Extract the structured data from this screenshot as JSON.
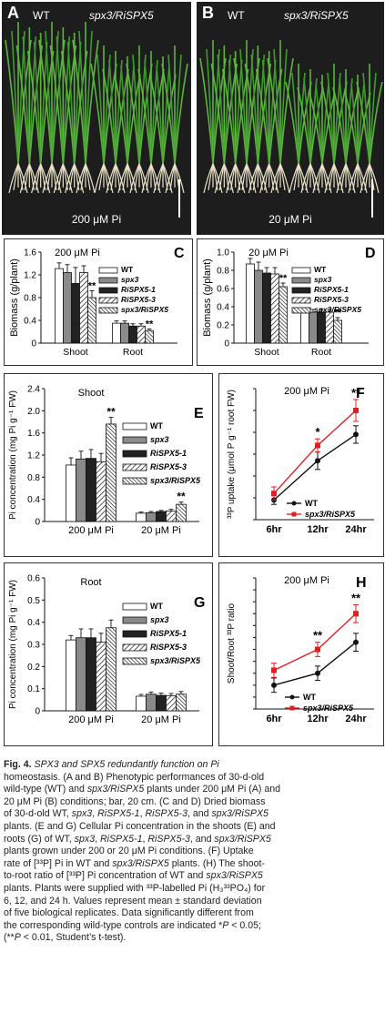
{
  "photos": [
    {
      "letter": "A",
      "wt": "WT",
      "mutant": "spx3/RiSPX5",
      "condition": "200 μM Pi"
    },
    {
      "letter": "B",
      "wt": "WT",
      "mutant": "spx3/RiSPX5",
      "condition": "20 μM Pi"
    }
  ],
  "legend5": [
    "WT",
    "spx3",
    "RiSPX5-1",
    "RiSPX5-3",
    "spx3/RiSPX5"
  ],
  "legend2": [
    "WT",
    "spx3/RiSPX5"
  ],
  "colors": {
    "wt": "#111111",
    "mutant": "#e02020"
  },
  "chart_data": [
    {
      "type": "bar",
      "panel": "C",
      "title": "200 μM Pi",
      "ylabel": "Biomass (g/plant)",
      "categories": [
        "Shoot",
        "Root"
      ],
      "ylim": [
        0,
        1.6
      ],
      "yticks": [
        0,
        0.4,
        0.8,
        1.2,
        1.6
      ],
      "series": [
        {
          "name": "WT",
          "values": [
            1.31,
            0.35
          ],
          "errors": [
            0.1,
            0.04
          ]
        },
        {
          "name": "spx3",
          "values": [
            1.24,
            0.35
          ],
          "errors": [
            0.14,
            0.04
          ]
        },
        {
          "name": "RiSPX5-1",
          "values": [
            1.05,
            0.3
          ],
          "errors": [
            0.28,
            0.04
          ]
        },
        {
          "name": "RiSPX5-3",
          "values": [
            1.24,
            0.3
          ],
          "errors": [
            0.12,
            0.04
          ]
        },
        {
          "name": "spx3/RiSPX5",
          "values": [
            0.8,
            0.22
          ],
          "errors": [
            0.12,
            0.03
          ]
        }
      ],
      "annotations": [
        {
          "category": "Shoot",
          "series": "spx3/RiSPX5",
          "text": "**"
        },
        {
          "category": "Root",
          "series": "spx3/RiSPX5",
          "text": "**"
        }
      ]
    },
    {
      "type": "bar",
      "panel": "D",
      "title": "20 μM Pi",
      "ylabel": "Biomass (g/plant)",
      "categories": [
        "Shoot",
        "Root"
      ],
      "ylim": [
        0,
        1.0
      ],
      "yticks": [
        0,
        0.2,
        0.4,
        0.6,
        0.8,
        1.0
      ],
      "series": [
        {
          "name": "WT",
          "values": [
            0.87,
            0.34
          ],
          "errors": [
            0.06,
            0.03
          ]
        },
        {
          "name": "spx3",
          "values": [
            0.8,
            0.34
          ],
          "errors": [
            0.09,
            0.03
          ]
        },
        {
          "name": "RiSPX5-1",
          "values": [
            0.77,
            0.34
          ],
          "errors": [
            0.06,
            0.03
          ]
        },
        {
          "name": "RiSPX5-3",
          "values": [
            0.76,
            0.34
          ],
          "errors": [
            0.07,
            0.03
          ]
        },
        {
          "name": "spx3/RiSPX5",
          "values": [
            0.62,
            0.25
          ],
          "errors": [
            0.04,
            0.03
          ]
        }
      ],
      "annotations": [
        {
          "category": "Shoot",
          "series": "spx3/RiSPX5",
          "text": "**"
        },
        {
          "category": "Root",
          "series": "spx3/RiSPX5",
          "text": "**"
        }
      ]
    },
    {
      "type": "bar",
      "panel": "E",
      "title": "Shoot",
      "ylabel": "Pi concentration (mg Pi g⁻¹ FW)",
      "categories": [
        "200 μM Pi",
        "20 μM Pi"
      ],
      "ylim": [
        0,
        2.4
      ],
      "yticks": [
        0,
        0.4,
        0.8,
        1.2,
        1.6,
        2.0,
        2.4
      ],
      "series": [
        {
          "name": "WT",
          "values": [
            1.02,
            0.15
          ],
          "errors": [
            0.13,
            0.02
          ]
        },
        {
          "name": "spx3",
          "values": [
            1.13,
            0.16
          ],
          "errors": [
            0.14,
            0.02
          ]
        },
        {
          "name": "RiSPX5-1",
          "values": [
            1.14,
            0.18
          ],
          "errors": [
            0.16,
            0.02
          ]
        },
        {
          "name": "RiSPX5-3",
          "values": [
            1.08,
            0.19
          ],
          "errors": [
            0.15,
            0.03
          ]
        },
        {
          "name": "spx3/RiSPX5",
          "values": [
            1.76,
            0.31
          ],
          "errors": [
            0.12,
            0.04
          ]
        }
      ],
      "annotations": [
        {
          "category": "200 μM Pi",
          "series": "spx3/RiSPX5",
          "text": "**"
        },
        {
          "category": "20 μM Pi",
          "series": "spx3/RiSPX5",
          "text": "**"
        }
      ]
    },
    {
      "type": "line",
      "panel": "F",
      "title": "200 μM Pi",
      "ylabel": "³³P uptake (μmol P g⁻¹ root FW)",
      "categories": [
        "6hr",
        "12hr",
        "24hr"
      ],
      "ylim": [
        10,
        70
      ],
      "series": [
        {
          "name": "WT",
          "values": [
            19,
            37,
            49
          ],
          "errors": [
            2,
            4,
            4
          ]
        },
        {
          "name": "spx3/RiSPX5",
          "values": [
            22,
            44,
            60
          ],
          "errors": [
            3,
            3,
            5
          ]
        }
      ],
      "annotations": [
        {
          "category": "12hr",
          "text": "*"
        },
        {
          "category": "24hr",
          "text": "**"
        }
      ]
    },
    {
      "type": "bar",
      "panel": "G",
      "title": "Root",
      "ylabel": "Pi concentration (mg Pi g⁻¹ FW)",
      "categories": [
        "200 μM Pi",
        "20 μM Pi"
      ],
      "ylim": [
        0,
        0.6
      ],
      "yticks": [
        0,
        0.1,
        0.2,
        0.3,
        0.4,
        0.5,
        0.6
      ],
      "series": [
        {
          "name": "WT",
          "values": [
            0.32,
            0.066
          ],
          "errors": [
            0.02,
            0.008
          ]
        },
        {
          "name": "spx3",
          "values": [
            0.33,
            0.075
          ],
          "errors": [
            0.04,
            0.01
          ]
        },
        {
          "name": "RiSPX5-1",
          "values": [
            0.33,
            0.07
          ],
          "errors": [
            0.04,
            0.01
          ]
        },
        {
          "name": "RiSPX5-3",
          "values": [
            0.31,
            0.068
          ],
          "errors": [
            0.04,
            0.01
          ]
        },
        {
          "name": "spx3/RiSPX5",
          "values": [
            0.375,
            0.075
          ],
          "errors": [
            0.035,
            0.012
          ]
        }
      ],
      "annotations": []
    },
    {
      "type": "line",
      "panel": "H",
      "title": "200 μM Pi",
      "ylabel": "Shoot/Root ³³P ratio",
      "categories": [
        "6hr",
        "12hr",
        "24hr"
      ],
      "ylim": [
        0.4,
        2.6
      ],
      "series": [
        {
          "name": "WT",
          "values": [
            0.8,
            1.0,
            1.52
          ],
          "errors": [
            0.12,
            0.12,
            0.15
          ]
        },
        {
          "name": "spx3/RiSPX5",
          "values": [
            1.05,
            1.4,
            2.0
          ],
          "errors": [
            0.12,
            0.12,
            0.15
          ]
        }
      ],
      "annotations": [
        {
          "category": "12hr",
          "text": "**"
        },
        {
          "category": "24hr",
          "text": "**"
        }
      ]
    }
  ],
  "caption": {
    "lines": [
      "Fig. 4.| SPX3 and SPX5 redundantly function on Pi",
      "homeostasis. (A and B) Phenotypic performances of 30-d-old",
      "wild-type (WT) and |spx3/RiSPX5| plants under 200 μM Pi (A) and",
      "20 μM Pi (B) conditions; bar, 20 cm. (C and D) Dried biomass",
      "of 30-d-old WT, |spx3|, |RiSPX5-1|, |RiSPX5-3|, and |spx3/RiSPX5",
      "plants. (E and G) Cellular Pi concentration in the shoots (E) and",
      "roots (G) of WT, |spx3|, |RiSPX5-1|, |RiSPX5-3|, and |spx3/RiSPX5",
      "plants grown under 200 or 20 μM Pi conditions. (F) Uptake",
      "rate of [³³P] Pi in WT and |spx3/RiSPX5| plants. (H) The shoot-",
      "to-root ratio of [³³P] Pi concentration of WT and |spx3/RiSPX5",
      "plants. Plants were supplied with ³³P-labelled Pi (H₃³³PO₄) for",
      "6, 12, and 24 h. Values represent mean ± standard deviation",
      "of five biological replicates. Data significantly different from",
      "the corresponding wild-type controls are indicated *|P| < 0.05;",
      "(**|P| < 0.01, Student’s t-test)."
    ]
  }
}
